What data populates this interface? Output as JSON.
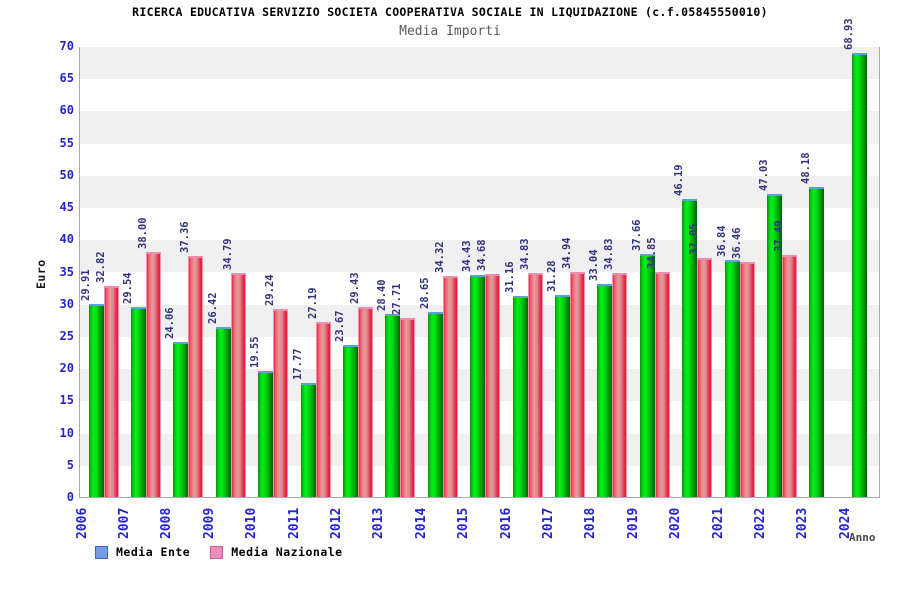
{
  "header": {
    "title": "RICERCA EDUCATIVA SERVIZIO SOCIETA COOPERATIVA SOCIALE IN LIQUIDAZIONE (c.f.05845550010)",
    "subtitle": "Media Importi"
  },
  "axes": {
    "y_title": "Euro",
    "x_title": "Anno"
  },
  "legend": {
    "items": [
      {
        "label": "Media Ente",
        "swatch_color": "#769ce8",
        "swatch_border": "#3c64c8"
      },
      {
        "label": "Media Nazionale",
        "swatch_color": "#ee8cbb",
        "swatch_border": "#c85a96"
      }
    ]
  },
  "colors": {
    "bar_green": "#00cc00",
    "bar_red": "#e81c3c",
    "tick_label": "#2525cb",
    "value_label": "#333380",
    "band_gray": "#f0f0f0",
    "plot_border": "#ababab"
  },
  "chart_data": {
    "type": "bar",
    "title": "Media Importi",
    "xlabel": "Anno",
    "ylabel": "Euro",
    "ylim": [
      0,
      70
    ],
    "ytick_step": 5,
    "grid": "alternating-horizontal-bands",
    "legend_position": "bottom-left",
    "value_labels": "rotated-90-above-bars",
    "categories": [
      "2006",
      "2007",
      "2008",
      "2009",
      "2010",
      "2011",
      "2012",
      "2013",
      "2014",
      "2015",
      "2016",
      "2017",
      "2018",
      "2019",
      "2020",
      "2021",
      "2022",
      "2023",
      "2024"
    ],
    "series": [
      {
        "name": "Media Ente",
        "color": "#00cc00",
        "values": [
          29.91,
          29.54,
          24.06,
          26.42,
          19.55,
          17.77,
          23.67,
          28.4,
          28.65,
          34.43,
          31.16,
          31.28,
          33.04,
          37.66,
          46.19,
          36.84,
          47.03,
          48.18,
          68.93
        ]
      },
      {
        "name": "Media Nazionale",
        "color": "#e81c3c",
        "values": [
          32.82,
          38.0,
          37.36,
          34.79,
          29.24,
          27.19,
          29.43,
          27.71,
          34.32,
          34.68,
          34.83,
          34.94,
          34.83,
          34.85,
          37.05,
          36.46,
          37.49,
          null,
          null
        ]
      }
    ]
  }
}
